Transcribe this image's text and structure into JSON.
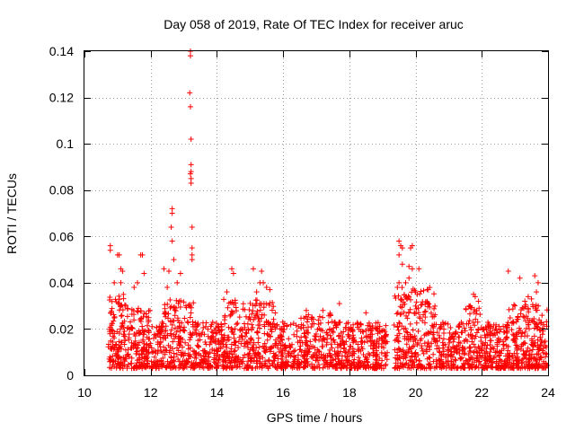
{
  "chart_data": {
    "type": "scatter",
    "title": "Day 058 of 2019, Rate Of TEC Index for receiver aruc",
    "xlabel": "GPS time / hours",
    "ylabel": "ROTI / TECUs",
    "xlim": [
      10,
      24
    ],
    "ylim": [
      0,
      0.14
    ],
    "x_ticks": [
      10,
      12,
      14,
      16,
      18,
      20,
      22,
      24
    ],
    "y_ticks": [
      0,
      0.02,
      0.04,
      0.06,
      0.08,
      0.1,
      0.12,
      0.14
    ],
    "x_tick_labels": [
      "10",
      "12",
      "14",
      "16",
      "18",
      "20",
      "22",
      "24"
    ],
    "y_tick_labels": [
      "0",
      "0.02",
      "0.04",
      "0.06",
      "0.08",
      "0.1",
      "0.12",
      "0.14"
    ],
    "grid": true,
    "marker": "+",
    "color": "#ff0000",
    "series": [
      {
        "name": "ROTI",
        "points": [
          [
            13.2,
            0.14
          ],
          [
            13.2,
            0.138
          ],
          [
            13.18,
            0.122
          ],
          [
            13.2,
            0.116
          ],
          [
            13.22,
            0.102
          ],
          [
            13.22,
            0.091
          ],
          [
            13.22,
            0.088
          ],
          [
            13.2,
            0.087
          ],
          [
            13.22,
            0.085
          ],
          [
            13.22,
            0.083
          ],
          [
            12.65,
            0.072
          ],
          [
            12.65,
            0.07
          ],
          [
            12.62,
            0.064
          ],
          [
            12.65,
            0.058
          ],
          [
            13.25,
            0.064
          ],
          [
            13.25,
            0.055
          ],
          [
            13.25,
            0.052
          ],
          [
            13.25,
            0.05
          ],
          [
            12.7,
            0.05
          ],
          [
            10.78,
            0.056
          ],
          [
            10.78,
            0.054
          ],
          [
            11.0,
            0.052
          ],
          [
            11.05,
            0.052
          ],
          [
            11.1,
            0.046
          ],
          [
            11.15,
            0.045
          ],
          [
            10.9,
            0.04
          ],
          [
            11.1,
            0.04
          ],
          [
            11.5,
            0.038
          ],
          [
            11.7,
            0.052
          ],
          [
            11.75,
            0.052
          ],
          [
            11.6,
            0.04
          ],
          [
            11.8,
            0.044
          ],
          [
            12.4,
            0.046
          ],
          [
            12.55,
            0.045
          ],
          [
            12.9,
            0.044
          ],
          [
            12.5,
            0.038
          ],
          [
            12.8,
            0.04
          ],
          [
            14.45,
            0.046
          ],
          [
            14.5,
            0.044
          ],
          [
            14.3,
            0.036
          ],
          [
            15.1,
            0.046
          ],
          [
            15.35,
            0.045
          ],
          [
            15.3,
            0.04
          ],
          [
            15.4,
            0.04
          ],
          [
            15.5,
            0.038
          ],
          [
            15.6,
            0.037
          ],
          [
            15.2,
            0.036
          ],
          [
            16.7,
            0.028
          ],
          [
            17.2,
            0.028
          ],
          [
            17.7,
            0.031
          ],
          [
            18.5,
            0.027
          ],
          [
            19.5,
            0.058
          ],
          [
            19.55,
            0.056
          ],
          [
            19.6,
            0.055
          ],
          [
            19.85,
            0.055
          ],
          [
            19.9,
            0.056
          ],
          [
            19.5,
            0.052
          ],
          [
            19.6,
            0.048
          ],
          [
            19.8,
            0.047
          ],
          [
            19.9,
            0.046
          ],
          [
            20.1,
            0.046
          ],
          [
            19.5,
            0.04
          ],
          [
            19.45,
            0.038
          ],
          [
            19.7,
            0.04
          ],
          [
            19.8,
            0.042
          ],
          [
            20.0,
            0.036
          ],
          [
            20.05,
            0.035
          ],
          [
            21.75,
            0.035
          ],
          [
            21.8,
            0.034
          ],
          [
            21.65,
            0.03
          ],
          [
            21.9,
            0.032
          ],
          [
            22.8,
            0.045
          ],
          [
            23.15,
            0.042
          ],
          [
            23.6,
            0.043
          ],
          [
            23.7,
            0.04
          ],
          [
            23.65,
            0.036
          ],
          [
            23.3,
            0.032
          ],
          [
            23.4,
            0.034
          ],
          [
            23.5,
            0.033
          ],
          [
            23.0,
            0.03
          ]
        ]
      }
    ]
  }
}
